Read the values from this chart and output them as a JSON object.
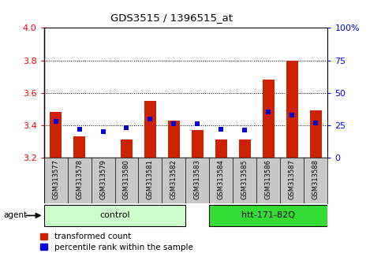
{
  "title": "GDS3515 / 1396515_at",
  "samples": [
    "GSM313577",
    "GSM313578",
    "GSM313579",
    "GSM313580",
    "GSM313581",
    "GSM313582",
    "GSM313583",
    "GSM313584",
    "GSM313585",
    "GSM313586",
    "GSM313587",
    "GSM313588"
  ],
  "transformed_count": [
    3.48,
    3.33,
    3.2,
    3.31,
    3.55,
    3.43,
    3.37,
    3.31,
    3.31,
    3.68,
    3.8,
    3.49
  ],
  "percentile_rank": [
    28,
    22,
    20,
    23,
    30,
    26,
    26,
    22,
    21,
    35,
    33,
    27
  ],
  "ylim_left": [
    3.2,
    4.0
  ],
  "ylim_right": [
    0,
    100
  ],
  "yticks_left": [
    3.2,
    3.4,
    3.6,
    3.8,
    4.0
  ],
  "yticks_right": [
    0,
    25,
    50,
    75,
    100
  ],
  "ytick_labels_right": [
    "0",
    "25",
    "50",
    "75",
    "100%"
  ],
  "bar_color": "#CC2200",
  "dot_color": "#0000DD",
  "sample_bg_color": "#C8C8C8",
  "ctrl_color": "#CCFFCC",
  "htt_color": "#33DD33",
  "bar_width": 0.5,
  "dot_size": 18,
  "gridline_ticks": [
    3.4,
    3.6,
    3.8
  ]
}
